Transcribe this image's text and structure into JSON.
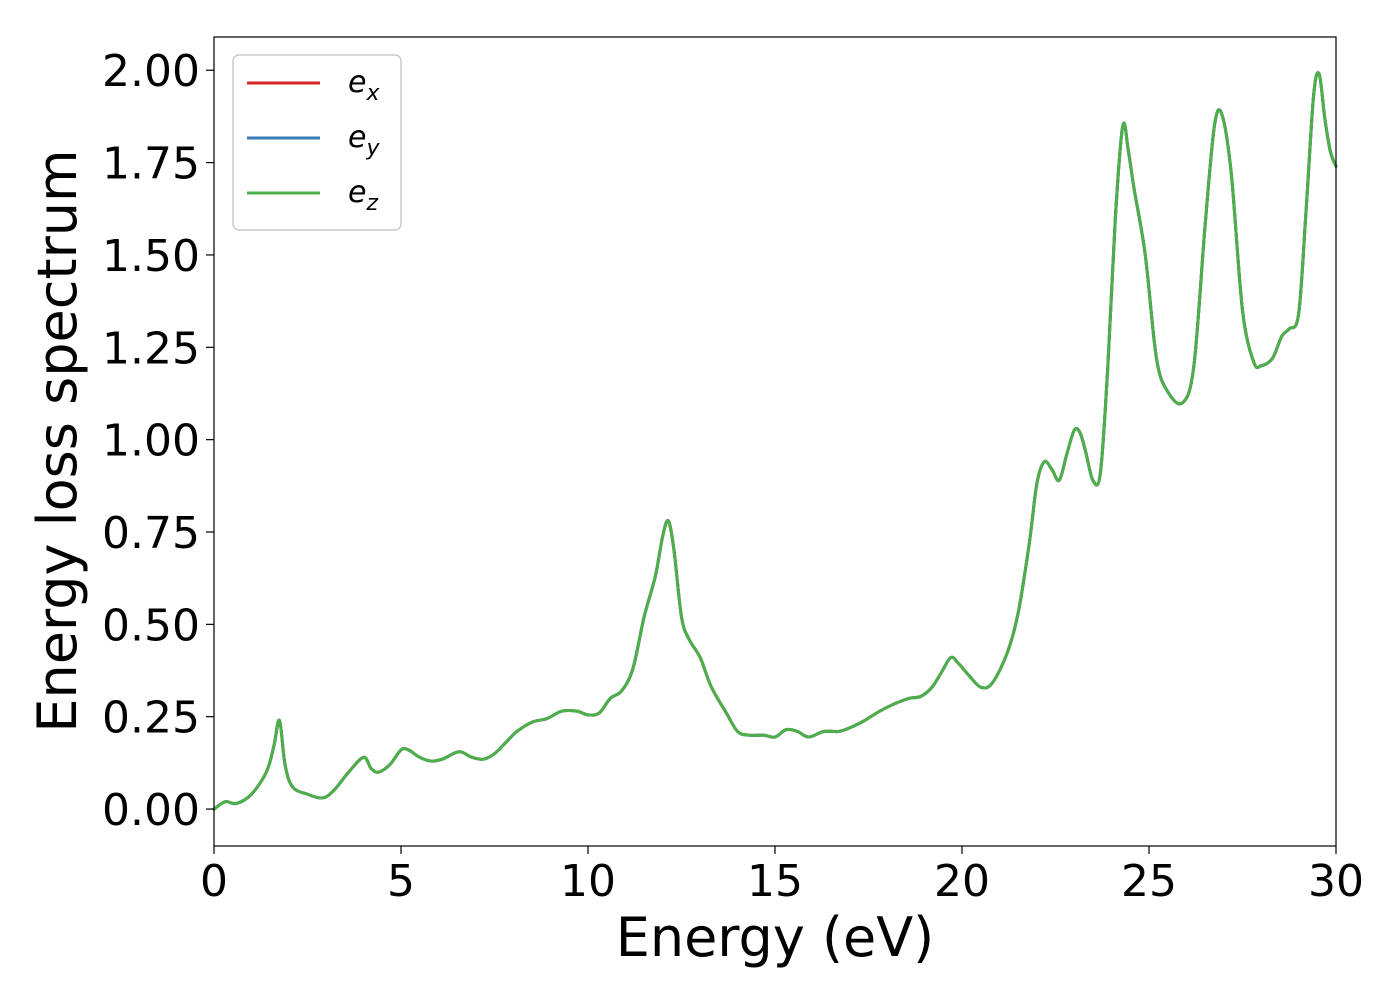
{
  "chart_data": {
    "type": "line",
    "xlabel": "Energy (eV)",
    "ylabel": "Energy loss spectrum",
    "xlim": [
      0,
      30
    ],
    "ylim": [
      -0.1,
      2.09
    ],
    "xticks": [
      0,
      5,
      10,
      15,
      20,
      25,
      30
    ],
    "xtick_labels": [
      "0",
      "5",
      "10",
      "15",
      "20",
      "25",
      "30"
    ],
    "yticks": [
      0.0,
      0.25,
      0.5,
      0.75,
      1.0,
      1.25,
      1.5,
      1.75,
      2.0
    ],
    "ytick_labels": [
      "0.00",
      "0.25",
      "0.50",
      "0.75",
      "1.00",
      "1.25",
      "1.50",
      "1.75",
      "2.00"
    ],
    "grid": false,
    "legend_position": "top-left",
    "legend": [
      {
        "base": "e",
        "sub": "x",
        "color": "#d62728"
      },
      {
        "base": "e",
        "sub": "y",
        "color": "#377eb8"
      },
      {
        "base": "e",
        "sub": "z",
        "color": "#4daf4a"
      }
    ],
    "x": [
      0,
      0.3,
      0.6,
      1.0,
      1.4,
      1.6,
      1.75,
      1.9,
      2.1,
      2.5,
      2.9,
      3.2,
      3.6,
      4.0,
      4.2,
      4.4,
      4.7,
      5.0,
      5.2,
      5.5,
      5.8,
      6.1,
      6.4,
      6.6,
      6.9,
      7.2,
      7.5,
      7.8,
      8.1,
      8.5,
      8.9,
      9.3,
      9.7,
      10.0,
      10.3,
      10.6,
      10.9,
      11.2,
      11.5,
      11.8,
      12.0,
      12.15,
      12.3,
      12.5,
      12.7,
      13.0,
      13.3,
      13.7,
      14.0,
      14.3,
      14.7,
      15.0,
      15.3,
      15.6,
      15.9,
      16.3,
      16.7,
      17.0,
      17.4,
      17.8,
      18.2,
      18.6,
      18.9,
      19.2,
      19.45,
      19.7,
      19.9,
      20.2,
      20.5,
      20.8,
      21.2,
      21.5,
      21.8,
      22.0,
      22.2,
      22.4,
      22.6,
      22.8,
      23.0,
      23.15,
      23.3,
      23.5,
      23.7,
      23.9,
      24.1,
      24.3,
      24.45,
      24.6,
      24.9,
      25.2,
      25.5,
      25.9,
      26.2,
      26.5,
      26.75,
      26.95,
      27.2,
      27.5,
      27.8,
      28.0,
      28.3,
      28.55,
      28.75,
      29.0,
      29.2,
      29.4,
      29.55,
      29.7,
      29.85,
      30.0
    ],
    "series": [
      {
        "name": "e_x",
        "color": "#d62728",
        "values": [
          0.0,
          0.02,
          0.015,
          0.04,
          0.1,
          0.17,
          0.24,
          0.12,
          0.06,
          0.04,
          0.03,
          0.05,
          0.1,
          0.14,
          0.11,
          0.1,
          0.12,
          0.16,
          0.16,
          0.14,
          0.13,
          0.135,
          0.15,
          0.155,
          0.14,
          0.135,
          0.15,
          0.18,
          0.21,
          0.235,
          0.245,
          0.265,
          0.265,
          0.255,
          0.26,
          0.3,
          0.32,
          0.38,
          0.52,
          0.63,
          0.74,
          0.78,
          0.7,
          0.52,
          0.46,
          0.41,
          0.33,
          0.26,
          0.21,
          0.2,
          0.2,
          0.195,
          0.215,
          0.21,
          0.195,
          0.21,
          0.21,
          0.22,
          0.24,
          0.265,
          0.285,
          0.3,
          0.305,
          0.33,
          0.37,
          0.41,
          0.395,
          0.36,
          0.33,
          0.34,
          0.42,
          0.53,
          0.72,
          0.88,
          0.94,
          0.92,
          0.89,
          0.96,
          1.025,
          1.02,
          0.97,
          0.89,
          0.91,
          1.2,
          1.6,
          1.85,
          1.78,
          1.68,
          1.5,
          1.22,
          1.13,
          1.1,
          1.2,
          1.58,
          1.85,
          1.88,
          1.72,
          1.35,
          1.21,
          1.2,
          1.22,
          1.28,
          1.3,
          1.34,
          1.62,
          1.93,
          1.99,
          1.87,
          1.78,
          1.74
        ]
      },
      {
        "name": "e_y",
        "color": "#377eb8",
        "values": [
          0.0,
          0.02,
          0.015,
          0.04,
          0.1,
          0.17,
          0.24,
          0.12,
          0.06,
          0.04,
          0.03,
          0.05,
          0.1,
          0.14,
          0.11,
          0.1,
          0.12,
          0.16,
          0.16,
          0.14,
          0.13,
          0.135,
          0.15,
          0.155,
          0.14,
          0.135,
          0.15,
          0.18,
          0.21,
          0.235,
          0.245,
          0.265,
          0.265,
          0.255,
          0.26,
          0.3,
          0.32,
          0.38,
          0.52,
          0.63,
          0.74,
          0.78,
          0.7,
          0.52,
          0.46,
          0.41,
          0.33,
          0.26,
          0.21,
          0.2,
          0.2,
          0.195,
          0.215,
          0.21,
          0.195,
          0.21,
          0.21,
          0.22,
          0.24,
          0.265,
          0.285,
          0.3,
          0.305,
          0.33,
          0.37,
          0.41,
          0.395,
          0.36,
          0.33,
          0.34,
          0.42,
          0.53,
          0.72,
          0.88,
          0.94,
          0.92,
          0.89,
          0.96,
          1.025,
          1.02,
          0.97,
          0.89,
          0.91,
          1.2,
          1.6,
          1.85,
          1.78,
          1.68,
          1.5,
          1.22,
          1.13,
          1.1,
          1.2,
          1.58,
          1.85,
          1.88,
          1.72,
          1.35,
          1.21,
          1.2,
          1.22,
          1.28,
          1.3,
          1.34,
          1.62,
          1.93,
          1.99,
          1.87,
          1.78,
          1.74
        ]
      },
      {
        "name": "e_z",
        "color": "#4daf4a",
        "values": [
          0.0,
          0.02,
          0.015,
          0.04,
          0.1,
          0.17,
          0.24,
          0.12,
          0.06,
          0.04,
          0.03,
          0.05,
          0.1,
          0.14,
          0.11,
          0.1,
          0.12,
          0.16,
          0.16,
          0.14,
          0.13,
          0.135,
          0.15,
          0.155,
          0.14,
          0.135,
          0.15,
          0.18,
          0.21,
          0.235,
          0.245,
          0.265,
          0.265,
          0.255,
          0.26,
          0.3,
          0.32,
          0.38,
          0.52,
          0.63,
          0.74,
          0.78,
          0.7,
          0.52,
          0.46,
          0.41,
          0.33,
          0.26,
          0.21,
          0.2,
          0.2,
          0.195,
          0.215,
          0.21,
          0.195,
          0.21,
          0.21,
          0.22,
          0.24,
          0.265,
          0.285,
          0.3,
          0.305,
          0.33,
          0.37,
          0.41,
          0.395,
          0.36,
          0.33,
          0.34,
          0.42,
          0.53,
          0.72,
          0.88,
          0.94,
          0.92,
          0.89,
          0.96,
          1.025,
          1.02,
          0.97,
          0.89,
          0.91,
          1.2,
          1.6,
          1.85,
          1.78,
          1.68,
          1.5,
          1.22,
          1.13,
          1.1,
          1.2,
          1.58,
          1.85,
          1.88,
          1.72,
          1.35,
          1.21,
          1.2,
          1.22,
          1.28,
          1.3,
          1.34,
          1.62,
          1.93,
          1.99,
          1.87,
          1.78,
          1.74
        ]
      }
    ]
  }
}
